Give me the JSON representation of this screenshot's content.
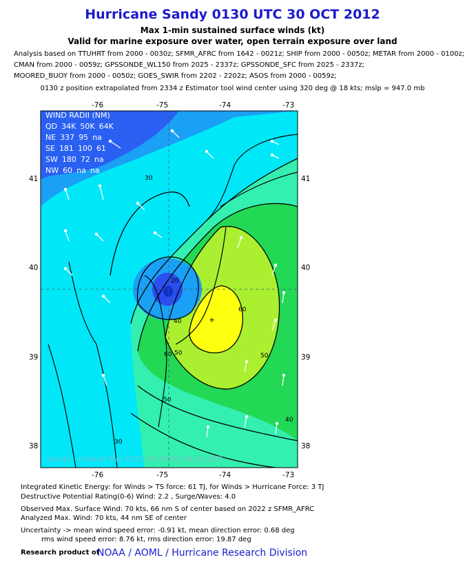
{
  "header": {
    "title": "Hurricane Sandy 0130 UTC 30 OCT 2012",
    "subtitle1": "Max 1-min sustained surface winds (kt)",
    "subtitle2": "Valid for marine exposure over water, open terrain exposure over land"
  },
  "analysis_lines": [
    "Analysis based on TTUHRT from 2000 - 0030z; SFMR_AFRC from 1642 - 0021z; SHIP from 2000 - 0050z; METAR from 2000 - 0100z;",
    "CMAN from 2000 - 0059z; GPSSONDE_WL150 from 2025 - 2337z; GPSSONDE_SFC from 2025 - 2337z;",
    "MOORED_BUOY from 2000 - 0050z; GOES_SWIR from 2202 - 2202z; ASOS from 2000 - 0059z;"
  ],
  "position_note": "0130 z position extrapolated from 2334 z Estimator tool wind center using 320 deg @ 18 kts; mslp = 947.0 mb",
  "map": {
    "lon_ticks": [
      "-76",
      "-75",
      "-74",
      "-73"
    ],
    "lat_ticks": [
      "41",
      "40",
      "39",
      "38"
    ],
    "contour_labels": [
      "30",
      "20",
      "40",
      "50",
      "60",
      "60",
      "50",
      "40",
      "50",
      "30"
    ],
    "center_marker": "+",
    "stamp": "Sandy - created Tue 2012-10-30 01:44:23 UTC"
  },
  "wind_radii": {
    "title": "WIND RADII (NM)",
    "header": [
      "QD",
      "34K",
      "50K",
      "64K"
    ],
    "rows": [
      [
        "NE",
        "337",
        "95",
        "na"
      ],
      [
        "SE",
        "181",
        "100",
        "61"
      ],
      [
        "SW",
        "180",
        "72",
        "na"
      ],
      [
        "NW",
        "60",
        "na",
        "na"
      ]
    ]
  },
  "footer": {
    "ike": "Integrated Kinetic Energy: for Winds > TS force: 61 TJ, for Winds > Hurricane Force: 3 TJ",
    "destructive": "Destructive Potential Rating(0-6)  Wind: 2.2 , Surge/Waves: 4.0",
    "observed": "Observed Max. Surface Wind: 70 kts, 66 nm S of center based on 2022 z SFMR_AFRC",
    "analyzed": "Analyzed Max. Wind: 70 kts, 44 nm  SE of center",
    "uncert1": "Uncertainty -> mean wind speed error:  -0.91 kt, mean direction error: 0.68 deg",
    "uncert2": "rms wind speed error: 8.76 kt, rms direction error: 19.87 deg",
    "product_label": "Research product of",
    "org": "NOAA  /  AOML  /  Hurricane Research Division"
  },
  "colors": {
    "title": "#1a1acc",
    "wind_lt20": "#2a4ef0",
    "wind_20_30": "#1aa0f5",
    "wind_30_40": "#00e8f8",
    "wind_40_50": "#33f0b0",
    "wind_50_60": "#22d855",
    "wind_60_70": "#aaf030",
    "wind_70plus": "#ffff10"
  }
}
